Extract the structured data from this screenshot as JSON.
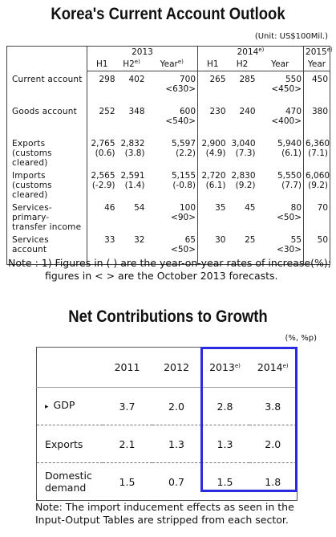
{
  "outlook": {
    "title": "Korea's Current Account Outlook",
    "unit": "(Unit: US$100Mil.)",
    "header": {
      "years": [
        {
          "year": "2013"
        },
        {
          "year": "2014",
          "mark": "e)"
        },
        {
          "year": "2015",
          "mark": "e)"
        }
      ],
      "periods": [
        {
          "label": "H1"
        },
        {
          "label": "H2",
          "mark": "e)"
        },
        {
          "label": "Year",
          "mark": "e)"
        },
        {
          "label": "H1"
        },
        {
          "label": "H2"
        },
        {
          "label": "Year"
        },
        {
          "label": "Year"
        }
      ]
    },
    "rows": [
      {
        "label": [
          "Current account"
        ],
        "cells": [
          [
            "298"
          ],
          [
            "402"
          ],
          [
            "700",
            "<630>"
          ],
          [
            "265"
          ],
          [
            "285"
          ],
          [
            "550",
            "<450>"
          ],
          [
            "450"
          ]
        ]
      },
      {
        "label": [
          "Goods account"
        ],
        "cells": [
          [
            "252"
          ],
          [
            "348"
          ],
          [
            "600",
            "<540>"
          ],
          [
            "230"
          ],
          [
            "240"
          ],
          [
            "470",
            "<400>"
          ],
          [
            "380"
          ]
        ]
      },
      {
        "label": [
          "Exports",
          "(customs cleared)"
        ],
        "cells": [
          [
            "2,765",
            "(0.6)"
          ],
          [
            "2,832",
            "(3.8)"
          ],
          [
            "5,597",
            "(2.2)"
          ],
          [
            "2,900",
            "(4.9)"
          ],
          [
            "3,040",
            "(7.3)"
          ],
          [
            "5,940",
            "(6.1)"
          ],
          [
            "6,360",
            "(7.1)"
          ]
        ]
      },
      {
        "label": [
          "Imports",
          "(customs cleared)"
        ],
        "cells": [
          [
            "2,565",
            "(-2.9)"
          ],
          [
            "2,591",
            "(1.4)"
          ],
          [
            "5,155",
            "(-0.8)"
          ],
          [
            "2,720",
            "(6.1)"
          ],
          [
            "2,830",
            "(9.2)"
          ],
          [
            "5,550",
            "(7.7)"
          ],
          [
            "6,060",
            "(9.2)"
          ]
        ]
      },
      {
        "label": [
          "Services-primary-",
          "transfer income"
        ],
        "cells": [
          [
            "46"
          ],
          [
            "54"
          ],
          [
            "100",
            "<90>"
          ],
          [
            "35"
          ],
          [
            "45"
          ],
          [
            "80",
            "<50>"
          ],
          [
            "70"
          ]
        ]
      },
      {
        "label": [
          "Services account"
        ],
        "cells": [
          [
            "33"
          ],
          [
            "32"
          ],
          [
            "65",
            "<50>"
          ],
          [
            "30"
          ],
          [
            "25"
          ],
          [
            "55",
            "<30>"
          ],
          [
            "50"
          ]
        ]
      }
    ],
    "note": [
      "Note : 1) Figures in ( ) are the year-on-year rates of increase(%);",
      "figures in < > are the October 2013 forecasts."
    ]
  },
  "growth": {
    "title": "Net Contributions to Growth",
    "unit": "(%, %p)",
    "years": [
      {
        "year": "2011"
      },
      {
        "year": "2012"
      },
      {
        "year": "2013",
        "mark": "e)"
      },
      {
        "year": "2014",
        "mark": "e)"
      }
    ],
    "rows": [
      {
        "label": [
          "GDP"
        ],
        "bullet": "▸",
        "values": [
          "3.7",
          "2.0",
          "2.8",
          "3.8"
        ]
      },
      {
        "label": [
          "Exports"
        ],
        "values": [
          "2.1",
          "1.3",
          "1.3",
          "2.0"
        ]
      },
      {
        "label": [
          "Domestic",
          "demand"
        ],
        "values": [
          "1.5",
          "0.7",
          "1.5",
          "1.8"
        ]
      }
    ],
    "note": [
      "Note: The import inducement effects as seen in the",
      "Input-Output Tables are stripped from each sector."
    ]
  }
}
